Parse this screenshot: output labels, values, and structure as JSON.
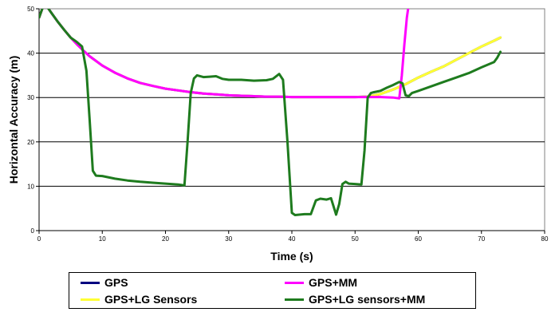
{
  "chart_data": {
    "type": "line",
    "title": "",
    "xlabel": "Time (s)",
    "ylabel": "Horizontal Accuracy (m)",
    "xlim": [
      0,
      80
    ],
    "ylim": [
      0,
      50
    ],
    "xticks": [
      "0",
      "10",
      "20",
      "30",
      "40",
      "50",
      "60",
      "70",
      "80"
    ],
    "yticks": [
      "0",
      "10",
      "20",
      "30",
      "40",
      "50"
    ],
    "grid": "horizontal",
    "legend_position": "bottom",
    "series": [
      {
        "name": "GPS",
        "color": "#000080",
        "points": [
          [
            0,
            48
          ],
          [
            0.5,
            50
          ],
          [
            1,
            51
          ],
          [
            2,
            49
          ],
          [
            3,
            47
          ],
          [
            4,
            45.2
          ],
          [
            5,
            43.5
          ],
          [
            6,
            42
          ],
          [
            7,
            40.6
          ],
          [
            8,
            39.3
          ],
          [
            10,
            37.2
          ],
          [
            12,
            35.6
          ],
          [
            14,
            34.3
          ],
          [
            16,
            33.3
          ],
          [
            18,
            32.6
          ],
          [
            20,
            32
          ],
          [
            22,
            31.6
          ],
          [
            24,
            31.2
          ],
          [
            26,
            30.9
          ],
          [
            28,
            30.7
          ],
          [
            30,
            30.5
          ],
          [
            32,
            30.4
          ],
          [
            34,
            30.3
          ],
          [
            36,
            30.2
          ],
          [
            38,
            30.2
          ],
          [
            40,
            30.1
          ],
          [
            42,
            30.1
          ],
          [
            44,
            30.1
          ],
          [
            46,
            30.1
          ],
          [
            48,
            30.1
          ],
          [
            50,
            30.1
          ],
          [
            52,
            30.2
          ],
          [
            54,
            30.8
          ],
          [
            56,
            31.8
          ],
          [
            58,
            33
          ],
          [
            60,
            34.5
          ],
          [
            62,
            35.8
          ],
          [
            64,
            37
          ],
          [
            66,
            38.5
          ],
          [
            68,
            40
          ],
          [
            70,
            41.5
          ],
          [
            72,
            42.8
          ],
          [
            73,
            43.5
          ]
        ]
      },
      {
        "name": "GPS+MM",
        "color": "#ff00ff",
        "points": [
          [
            0,
            48
          ],
          [
            0.5,
            50
          ],
          [
            1,
            51
          ],
          [
            2,
            49
          ],
          [
            3,
            47
          ],
          [
            4,
            45.2
          ],
          [
            5,
            43.5
          ],
          [
            6,
            42
          ],
          [
            7,
            40.6
          ],
          [
            8,
            39.3
          ],
          [
            10,
            37.2
          ],
          [
            12,
            35.6
          ],
          [
            14,
            34.3
          ],
          [
            16,
            33.3
          ],
          [
            18,
            32.6
          ],
          [
            20,
            32
          ],
          [
            22,
            31.6
          ],
          [
            24,
            31.2
          ],
          [
            26,
            30.9
          ],
          [
            28,
            30.7
          ],
          [
            30,
            30.5
          ],
          [
            32,
            30.4
          ],
          [
            34,
            30.3
          ],
          [
            36,
            30.2
          ],
          [
            38,
            30.2
          ],
          [
            40,
            30.1
          ],
          [
            42,
            30.1
          ],
          [
            44,
            30.1
          ],
          [
            46,
            30.1
          ],
          [
            48,
            30.1
          ],
          [
            50,
            30.1
          ],
          [
            52,
            30.1
          ],
          [
            54,
            30.1
          ],
          [
            56,
            30.0
          ],
          [
            57,
            29.8
          ],
          [
            57.4,
            35
          ],
          [
            57.8,
            42
          ],
          [
            58.2,
            48
          ],
          [
            58.5,
            51
          ]
        ]
      },
      {
        "name": "GPS+LG Sensors",
        "color": "#ffff33",
        "points": [
          [
            0,
            48
          ],
          [
            0.5,
            50
          ],
          [
            1,
            51
          ],
          [
            2,
            49
          ],
          [
            3,
            47
          ],
          [
            4,
            45.2
          ],
          [
            5,
            43.5
          ],
          [
            6,
            42
          ],
          [
            7,
            40.6
          ],
          [
            8,
            39.3
          ],
          [
            10,
            37.2
          ],
          [
            12,
            35.6
          ],
          [
            14,
            34.3
          ],
          [
            16,
            33.3
          ],
          [
            18,
            32.6
          ],
          [
            20,
            32
          ],
          [
            22,
            31.6
          ],
          [
            24,
            31.2
          ],
          [
            26,
            30.9
          ],
          [
            28,
            30.7
          ],
          [
            30,
            30.5
          ],
          [
            32,
            30.4
          ],
          [
            34,
            30.3
          ],
          [
            36,
            30.2
          ],
          [
            38,
            30.2
          ],
          [
            40,
            30.1
          ],
          [
            42,
            30.1
          ],
          [
            44,
            30.1
          ],
          [
            46,
            30.1
          ],
          [
            48,
            30.1
          ],
          [
            50,
            30.1
          ],
          [
            52,
            30.2
          ],
          [
            54,
            30.8
          ],
          [
            56,
            31.8
          ],
          [
            58,
            33
          ],
          [
            60,
            34.5
          ],
          [
            62,
            35.8
          ],
          [
            64,
            37
          ],
          [
            66,
            38.5
          ],
          [
            68,
            40
          ],
          [
            70,
            41.5
          ],
          [
            72,
            42.8
          ],
          [
            73,
            43.5
          ]
        ]
      },
      {
        "name": "GPS+LG sensors+MM",
        "color": "#1e7b1e",
        "points": [
          [
            0,
            48
          ],
          [
            0.5,
            50
          ],
          [
            1,
            51
          ],
          [
            2,
            49
          ],
          [
            3,
            47
          ],
          [
            4,
            45.2
          ],
          [
            5,
            43.5
          ],
          [
            6,
            42.5
          ],
          [
            6.8,
            41.5
          ],
          [
            7.5,
            36
          ],
          [
            8,
            25
          ],
          [
            8.5,
            13.5
          ],
          [
            9,
            12.4
          ],
          [
            10,
            12.3
          ],
          [
            12,
            11.7
          ],
          [
            14,
            11.3
          ],
          [
            16,
            11
          ],
          [
            18,
            10.8
          ],
          [
            20,
            10.6
          ],
          [
            22,
            10.4
          ],
          [
            23,
            10.2
          ],
          [
            23.5,
            20
          ],
          [
            24,
            31
          ],
          [
            24.5,
            34.3
          ],
          [
            25,
            35
          ],
          [
            26,
            34.6
          ],
          [
            27,
            34.7
          ],
          [
            28,
            34.8
          ],
          [
            29,
            34.2
          ],
          [
            30,
            34
          ],
          [
            32,
            34
          ],
          [
            34,
            33.8
          ],
          [
            36,
            33.9
          ],
          [
            37,
            34.2
          ],
          [
            38,
            35.3
          ],
          [
            38.6,
            34
          ],
          [
            39.3,
            20
          ],
          [
            40,
            4
          ],
          [
            40.5,
            3.5
          ],
          [
            42,
            3.7
          ],
          [
            43,
            3.7
          ],
          [
            43.8,
            6.8
          ],
          [
            44.5,
            7.2
          ],
          [
            45.5,
            7
          ],
          [
            46.2,
            7.3
          ],
          [
            47,
            3.6
          ],
          [
            47.5,
            6
          ],
          [
            48,
            10.5
          ],
          [
            48.5,
            11
          ],
          [
            49,
            10.6
          ],
          [
            50,
            10.5
          ],
          [
            51,
            10.4
          ],
          [
            51.5,
            18
          ],
          [
            52,
            30
          ],
          [
            52.5,
            31
          ],
          [
            53,
            31.2
          ],
          [
            54,
            31.5
          ],
          [
            55,
            32.2
          ],
          [
            56,
            32.8
          ],
          [
            57,
            33.5
          ],
          [
            57.5,
            33.2
          ],
          [
            58,
            30.5
          ],
          [
            58.5,
            30.3
          ],
          [
            59,
            31
          ],
          [
            60,
            31.5
          ],
          [
            62,
            32.5
          ],
          [
            64,
            33.5
          ],
          [
            66,
            34.5
          ],
          [
            68,
            35.5
          ],
          [
            70,
            36.8
          ],
          [
            72,
            38
          ],
          [
            72.5,
            39
          ],
          [
            73,
            40.3
          ]
        ]
      }
    ]
  }
}
